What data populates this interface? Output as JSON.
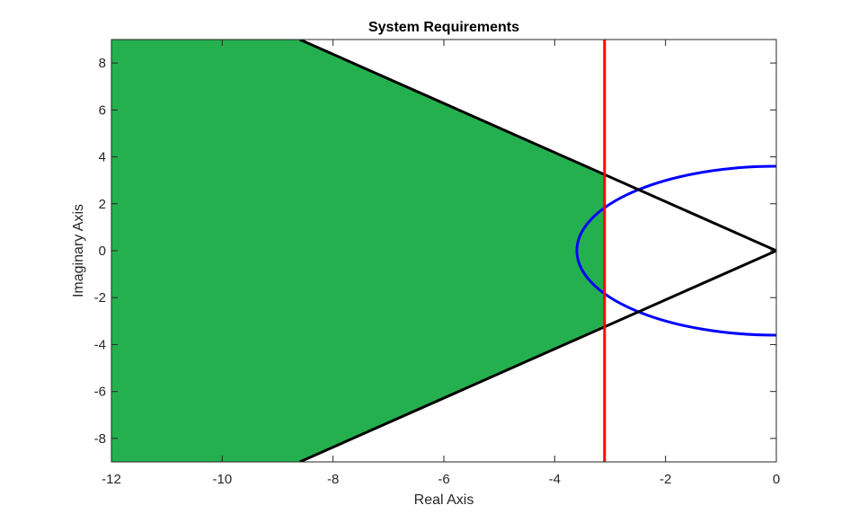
{
  "chart_data": {
    "type": "area",
    "title": "System Requirements",
    "xlabel": "Real Axis",
    "ylabel": "Imaginary Axis",
    "xlim": [
      -12,
      0
    ],
    "ylim": [
      -9,
      9
    ],
    "xticks": [
      -12,
      -10,
      -8,
      -6,
      -4,
      -2,
      0
    ],
    "yticks": [
      -8,
      -6,
      -4,
      -2,
      0,
      2,
      4,
      6,
      8
    ],
    "xtick_labels": [
      "-12",
      "-10",
      "-8",
      "-6",
      "-4",
      "-2",
      "0"
    ],
    "ytick_labels": [
      "-8",
      "-6",
      "-4",
      "-2",
      "0",
      "2",
      "4",
      "6",
      "8"
    ],
    "grid": false,
    "feasible_region": {
      "color": "#25b050",
      "polygon": [
        [
          -12,
          9
        ],
        [
          -8.6,
          9
        ],
        [
          -3.1,
          3.25
        ],
        [
          -3.1,
          -3.25
        ],
        [
          -8.6,
          -9
        ],
        [
          -12,
          -9
        ]
      ]
    },
    "damping_lines": {
      "color": "#000000",
      "upper": [
        [
          -8.6,
          9
        ],
        [
          0,
          0
        ]
      ],
      "lower": [
        [
          -8.6,
          -9
        ],
        [
          0,
          0
        ]
      ]
    },
    "settling_time_line": {
      "color": "#ff0000",
      "x": -3.1
    },
    "natural_frequency_circle": {
      "color": "#0000ff",
      "radius": 3.6,
      "center": [
        0,
        0
      ]
    }
  }
}
